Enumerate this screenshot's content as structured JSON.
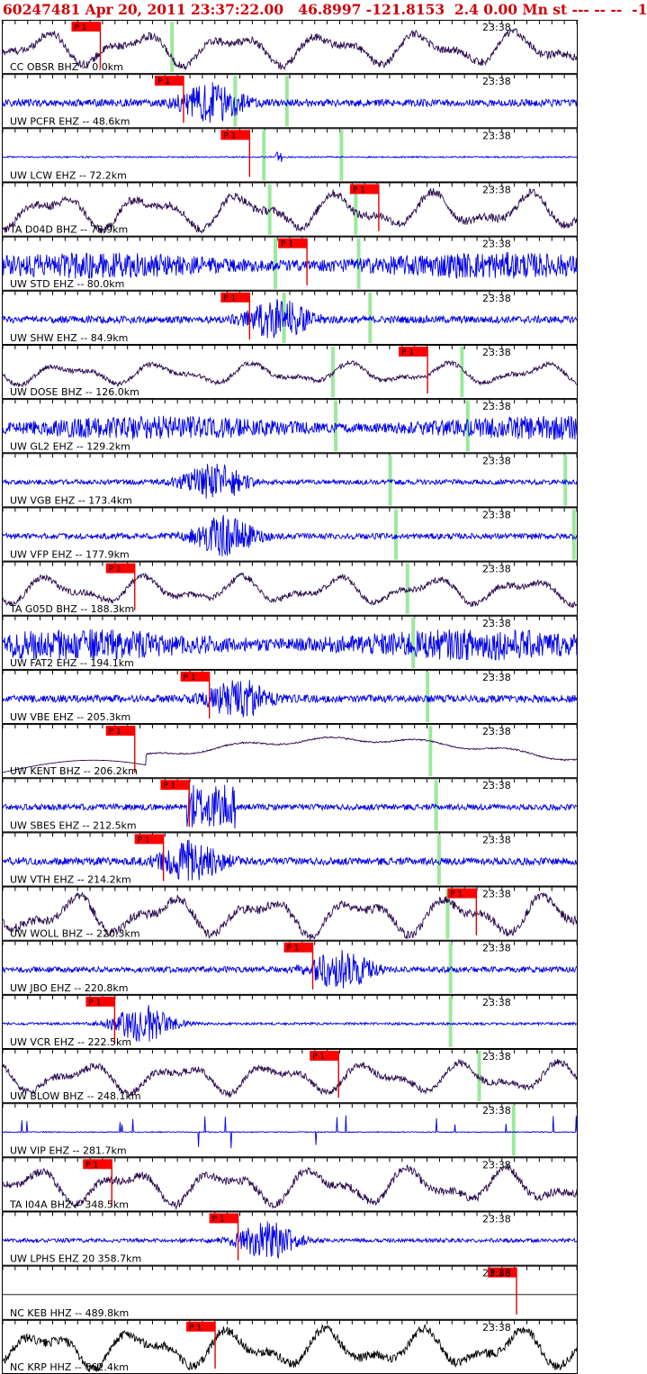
{
  "header": {
    "event_line": "60247481 Apr 20, 2011 23:37:22.00   46.8997 -121.8153  2.4 0.00 Mn st --- -- --  -1"
  },
  "chart_data": {
    "type": "line",
    "title": "60247481 Apr 20, 2011 23:37:22.00   46.8997 -121.8153  2.4 0.00 Mn st --- -- --  -1",
    "time_mark_label": "23:38",
    "pick_label": "P 1",
    "colors": {
      "header": "#d0000a",
      "pick_flag": "#ff0000",
      "pick_line": "#e00000",
      "window_marker": "#9de89d",
      "tick": "#000000",
      "short_period_trace": "#0000e6",
      "broadband_trace": "#2a0a4e",
      "network_nc_trace": "#000000"
    },
    "traces": [
      {
        "label": "CC OBSR BHZ -- 0.0km",
        "color": "#2a0a4e",
        "kind": "lp",
        "amp": 0.55,
        "pick": 0.17,
        "green": [
          0.295
        ]
      },
      {
        "label": "UW PCFR EHZ -- 48.6km",
        "color": "#0000e6",
        "kind": "burst",
        "amp": 0.15,
        "pick": 0.315,
        "green": [
          0.405,
          0.495
        ]
      },
      {
        "label": "UW LCW EHZ -- 72.2km",
        "color": "#0000e6",
        "kind": "quiet",
        "amp": 0.03,
        "pick": 0.43,
        "green": [
          0.455,
          0.59
        ]
      },
      {
        "label": "TA D04D BHZ -- 78.9km",
        "color": "#2a0a4e",
        "kind": "lp",
        "amp": 0.6,
        "pick": 0.655,
        "green": [
          0.465,
          0.615
        ]
      },
      {
        "label": "UW STD EHZ -- 80.0km",
        "color": "#0000e6",
        "kind": "noisy",
        "amp": 0.55,
        "pick": 0.53,
        "green": [
          0.475,
          0.62
        ]
      },
      {
        "label": "UW SHW EHZ -- 84.9km",
        "color": "#0000e6",
        "kind": "burst",
        "amp": 0.15,
        "pick": 0.43,
        "green": [
          0.49,
          0.64
        ]
      },
      {
        "label": "UW DOSE BHZ -- 126.0km",
        "color": "#2a0a4e",
        "kind": "lp",
        "amp": 0.35,
        "pick": 0.74,
        "green": [
          0.575,
          0.8
        ]
      },
      {
        "label": "UW GL2 EHZ -- 129.2km",
        "color": "#0000e6",
        "kind": "noisy",
        "amp": 0.5,
        "pick": null,
        "green": [
          0.58,
          0.81
        ]
      },
      {
        "label": "UW VGB EHZ -- 173.4km",
        "color": "#0000e6",
        "kind": "burst",
        "amp": 0.1,
        "pick": null,
        "green": [
          0.675,
          0.98
        ]
      },
      {
        "label": "UW VFP EHZ -- 177.9km",
        "color": "#0000e6",
        "kind": "burst",
        "amp": 0.12,
        "pick": null,
        "green": [
          0.685,
          0.995
        ]
      },
      {
        "label": "TA G05D BHZ -- 188.3km",
        "color": "#2a0a4e",
        "kind": "lp",
        "amp": 0.45,
        "pick": 0.23,
        "green": [
          0.705
        ]
      },
      {
        "label": "UW FAT2 EHZ -- 194.1km",
        "color": "#0000e6",
        "kind": "noisy",
        "amp": 0.65,
        "pick": null,
        "green": [
          0.715
        ]
      },
      {
        "label": "UW VBE EHZ -- 205.3km",
        "color": "#0000e6",
        "kind": "burst",
        "amp": 0.15,
        "pick": 0.36,
        "green": [
          0.74
        ]
      },
      {
        "label": "UW KENT BHZ -- 206.2km",
        "color": "#2a0a4e",
        "kind": "drift",
        "amp": 0.6,
        "pick": 0.23,
        "green": [
          0.745
        ]
      },
      {
        "label": "UW SBES EHZ -- 212.5km",
        "color": "#0000e6",
        "kind": "block",
        "amp": 0.12,
        "pick": 0.325,
        "green": [
          0.755
        ]
      },
      {
        "label": "UW VTH EHZ -- 214.2km",
        "color": "#0000e6",
        "kind": "burst",
        "amp": 0.15,
        "pick": 0.28,
        "green": [
          0.76
        ]
      },
      {
        "label": "UW WOLL BHZ -- 220.3km",
        "color": "#2a0a4e",
        "kind": "lp",
        "amp": 0.65,
        "pick": 0.825,
        "green": [
          0.775
        ]
      },
      {
        "label": "UW JBO EHZ -- 220.8km",
        "color": "#0000e6",
        "kind": "burst",
        "amp": 0.12,
        "pick": 0.54,
        "green": [
          0.78
        ]
      },
      {
        "label": "UW VCR EHZ -- 222.5km",
        "color": "#0000e6",
        "kind": "burst",
        "amp": 0.05,
        "pick": 0.195,
        "green": [
          0.78
        ]
      },
      {
        "label": "UW BLOW BHZ -- 248.1km",
        "color": "#2a0a4e",
        "kind": "lp",
        "amp": 0.5,
        "pick": 0.585,
        "green": [
          0.83
        ]
      },
      {
        "label": "UW VIP EHZ -- 281.7km",
        "color": "#0000e6",
        "kind": "spikes",
        "amp": 0.02,
        "pick": null,
        "green": [
          0.89
        ]
      },
      {
        "label": "TA I04A BHZ -- 348.5km",
        "color": "#2a0a4e",
        "kind": "lp",
        "amp": 0.6,
        "pick": 0.19,
        "green": []
      },
      {
        "label": "UW LPHS EHZ 20 358.7km",
        "color": "#0000e6",
        "kind": "burst",
        "amp": 0.08,
        "pick": 0.41,
        "green": []
      },
      {
        "label": "NC KEB HHZ -- 489.8km",
        "color": "#000000",
        "kind": "flat",
        "amp": 0.0,
        "pick": 0.895,
        "green": []
      },
      {
        "label": "NC KRP HHZ -- 662.4km",
        "color": "#000000",
        "kind": "lp",
        "amp": 0.65,
        "pick": 0.37,
        "green": []
      }
    ]
  }
}
